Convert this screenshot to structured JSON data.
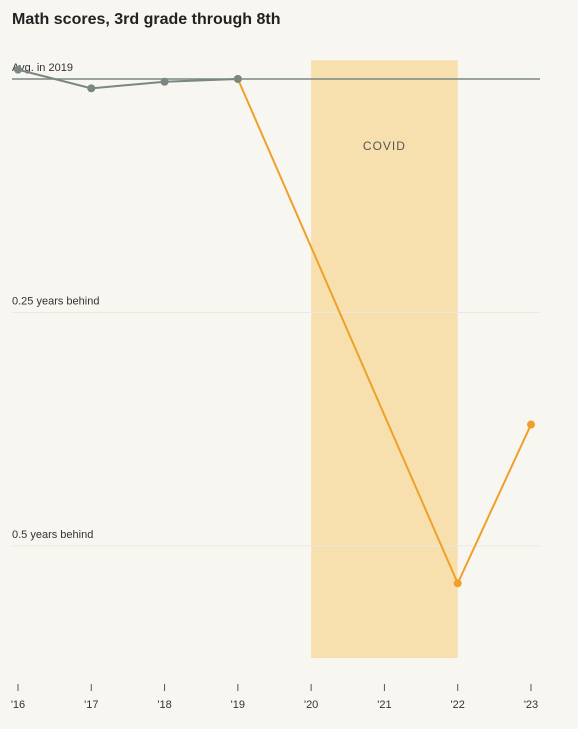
{
  "chart_data": {
    "type": "line",
    "title": "Math scores, 3rd grade through 8th",
    "xlim": [
      16,
      23
    ],
    "xticks": [
      {
        "value": 16,
        "label": "'16"
      },
      {
        "value": 17,
        "label": "'17"
      },
      {
        "value": 18,
        "label": "'18"
      },
      {
        "value": 19,
        "label": "'19"
      },
      {
        "value": 20,
        "label": "'20"
      },
      {
        "value": 21,
        "label": "'21"
      },
      {
        "value": 22,
        "label": "'22"
      },
      {
        "value": 23,
        "label": "'23"
      }
    ],
    "ylim": [
      -0.62,
      0.02
    ],
    "yticks": [
      {
        "value": 0,
        "label": "Avg. in 2019"
      },
      {
        "value": -0.25,
        "label": "0.25 years behind"
      },
      {
        "value": -0.5,
        "label": "0.5 years behind"
      }
    ],
    "grid": true,
    "series": [
      {
        "color": "#f0a02a",
        "x": [
          19,
          22,
          23
        ],
        "values": [
          0,
          -0.54,
          -0.37
        ]
      },
      {
        "color": "#7b8782",
        "x": [
          16,
          17,
          18,
          19
        ],
        "values": [
          0.01,
          -0.01,
          -0.003,
          0
        ]
      }
    ],
    "annotations": [
      {
        "text": "COVID",
        "x0": 20,
        "x1": 22,
        "color": "#f7e0ad"
      }
    ]
  }
}
